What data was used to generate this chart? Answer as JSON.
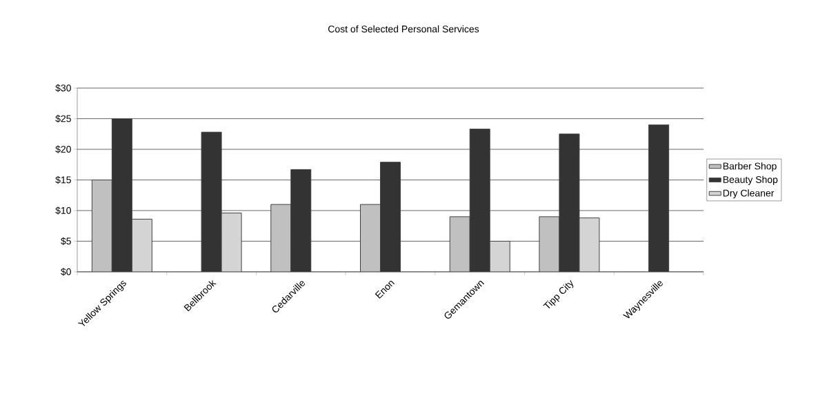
{
  "chart_data": {
    "type": "bar",
    "title": "Cost of Selected Personal Services",
    "categories": [
      "Yellow Springs",
      "Bellbrook",
      "Cedarville",
      "Enon",
      "Gemantown",
      "Tipp City",
      "Waynesville"
    ],
    "series": [
      {
        "name": "Barber Shop",
        "color": "#c0c0c0",
        "values": [
          15,
          null,
          11,
          11,
          9,
          9,
          null
        ]
      },
      {
        "name": "Beauty Shop",
        "color": "#333333",
        "values": [
          25,
          22.8,
          16.7,
          17.9,
          23.3,
          22.5,
          24
        ]
      },
      {
        "name": "Dry Cleaner",
        "color": "#d4d4d4",
        "values": [
          8.6,
          9.6,
          null,
          null,
          5,
          8.8,
          null
        ]
      }
    ],
    "ylim": [
      0,
      30
    ],
    "yticks": [
      {
        "value": 0,
        "label": "$0"
      },
      {
        "value": 5,
        "label": "$5"
      },
      {
        "value": 10,
        "label": "$10"
      },
      {
        "value": 15,
        "label": "$15"
      },
      {
        "value": 20,
        "label": "$20"
      },
      {
        "value": 25,
        "label": "$25"
      },
      {
        "value": 30,
        "label": "$30"
      }
    ],
    "grid": "y",
    "legend": "right"
  }
}
